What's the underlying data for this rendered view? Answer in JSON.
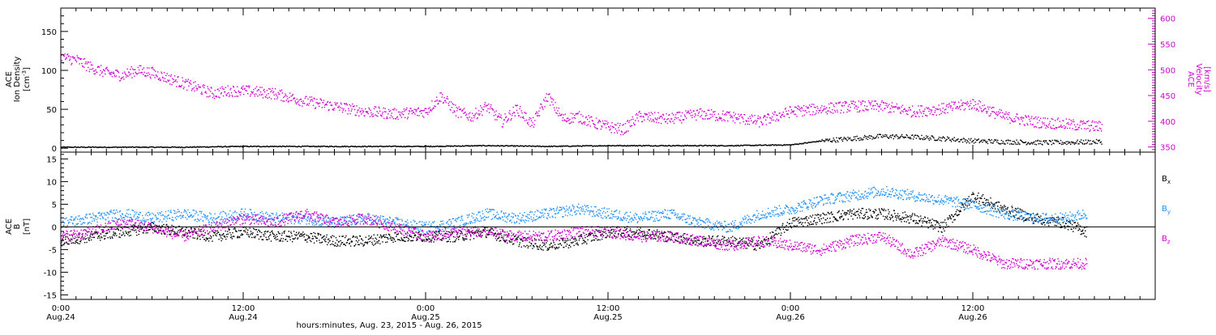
{
  "colors": {
    "black": "#000000",
    "magenta": "#d000d0",
    "blue": "#1e90ff"
  },
  "x_axis": {
    "tick_labels": [
      {
        "time": "0:00",
        "date": "Aug.24"
      },
      {
        "time": "12:00",
        "date": "Aug.24"
      },
      {
        "time": "0:00",
        "date": "Aug.25"
      },
      {
        "time": "12:00",
        "date": "Aug.25"
      },
      {
        "time": "0:00",
        "date": "Aug.26"
      },
      {
        "time": "12:00",
        "date": "Aug.26"
      }
    ],
    "tick_hours": [
      0,
      12,
      24,
      36,
      48,
      60
    ],
    "range_hours": [
      0,
      72
    ],
    "label": "hours:minutes, Aug. 23, 2015 - Aug. 26, 2015"
  },
  "chart_data": [
    {
      "type": "scatter",
      "panel": "top",
      "x_units": "hours since Aug.24 0:00",
      "left_axis": {
        "label_lines": [
          "ACE",
          "Ion Density"
        ],
        "unit_prefix": "[cm",
        "unit_sup": "-3",
        "unit_suffix": "]",
        "ylim": [
          -5,
          180
        ],
        "ticks": [
          0,
          50,
          100,
          150
        ],
        "color": "#000000"
      },
      "right_axis": {
        "label_lines": [
          "ACE",
          "Velocity",
          "[km/s]"
        ],
        "ylim": [
          340,
          620
        ],
        "ticks": [
          350,
          400,
          450,
          500,
          550,
          600
        ],
        "color": "#d000d0"
      },
      "series": [
        {
          "axis": "left",
          "color": "#000000",
          "x": [
            0,
            4,
            8,
            12,
            16,
            20,
            24,
            28,
            32,
            36,
            40,
            44,
            48,
            50,
            52,
            54,
            56,
            58,
            60,
            62,
            64,
            66,
            68.5
          ],
          "y": [
            2,
            2,
            2,
            3,
            3,
            3,
            3,
            4,
            3,
            4,
            4,
            4,
            5,
            10,
            13,
            16,
            15,
            13,
            10,
            9,
            8,
            8,
            9
          ]
        },
        {
          "axis": "right",
          "color": "#d000d0",
          "x": [
            0,
            1,
            2,
            3,
            4,
            5,
            6,
            7,
            8,
            9,
            10,
            11,
            12,
            14,
            16,
            18,
            20,
            22,
            24,
            25,
            26,
            27,
            28,
            29,
            30,
            31,
            32,
            33,
            34,
            35,
            36,
            37,
            38,
            40,
            42,
            44,
            46,
            48,
            50,
            52,
            54,
            56,
            58,
            60,
            62,
            64,
            66,
            68.5
          ],
          "y": [
            525,
            520,
            505,
            495,
            490,
            500,
            495,
            485,
            475,
            465,
            455,
            460,
            460,
            455,
            440,
            430,
            420,
            415,
            420,
            450,
            420,
            410,
            430,
            400,
            425,
            395,
            450,
            405,
            410,
            398,
            390,
            385,
            410,
            405,
            415,
            410,
            400,
            420,
            425,
            430,
            430,
            420,
            425,
            435,
            410,
            400,
            395,
            390
          ]
        }
      ]
    },
    {
      "type": "scatter",
      "panel": "bottom",
      "x_units": "hours since Aug.24 0:00",
      "y_axis": {
        "label_lines": [
          "ACE",
          "B",
          "[nT]"
        ],
        "ylim": [
          -16,
          16.5
        ],
        "ticks": [
          -15,
          -10,
          -5,
          0,
          5,
          10,
          15
        ],
        "zero_line": true
      },
      "series": [
        {
          "name_base": "B",
          "name_sub": "x",
          "color": "#000000",
          "x": [
            0,
            2,
            4,
            6,
            8,
            10,
            12,
            14,
            16,
            18,
            20,
            22,
            24,
            26,
            28,
            30,
            32,
            34,
            36,
            38,
            40,
            42,
            44,
            46,
            48,
            50,
            52,
            54,
            56,
            58,
            60,
            62,
            64,
            66,
            67.5
          ],
          "y": [
            -3,
            -2,
            -1,
            0,
            -1,
            -2,
            -1,
            -2,
            -2,
            -3,
            -3,
            -2,
            -2,
            -2,
            -1,
            -3,
            -4,
            -3,
            -1,
            -1,
            -2,
            -3,
            -3,
            -4,
            1,
            2,
            3,
            3,
            2,
            0,
            7,
            4,
            2,
            1,
            -1
          ]
        },
        {
          "name_base": "B",
          "name_sub": "y",
          "color": "#1e90ff",
          "x": [
            0,
            2,
            4,
            6,
            8,
            10,
            12,
            14,
            16,
            18,
            20,
            22,
            24,
            26,
            28,
            30,
            32,
            34,
            36,
            38,
            40,
            42,
            44,
            46,
            48,
            50,
            52,
            54,
            56,
            58,
            60,
            62,
            64,
            66,
            67.5
          ],
          "y": [
            1,
            2,
            3,
            2,
            3,
            2,
            3,
            2,
            2,
            1,
            2,
            1,
            0,
            1,
            3,
            2,
            3,
            4,
            3,
            2,
            3,
            1,
            0,
            3,
            4,
            6,
            7,
            8,
            7,
            6,
            5,
            3,
            2,
            2,
            3
          ]
        },
        {
          "name_base": "B",
          "name_sub": "z",
          "color": "#d000d0",
          "x": [
            0,
            2,
            4,
            6,
            8,
            10,
            12,
            14,
            16,
            18,
            20,
            22,
            24,
            26,
            28,
            30,
            32,
            34,
            36,
            38,
            40,
            42,
            44,
            46,
            48,
            50,
            52,
            54,
            56,
            58,
            60,
            62,
            64,
            66,
            67.5
          ],
          "y": [
            -2,
            -1,
            1,
            0,
            -2,
            0,
            2,
            1,
            3,
            1,
            2,
            0,
            -2,
            -1,
            -1,
            -2,
            -2,
            -1,
            -1,
            -2,
            -2,
            -3,
            -4,
            -3,
            -4,
            -5,
            -3,
            -2,
            -6,
            -3,
            -5,
            -8,
            -8,
            -8,
            -8
          ]
        }
      ]
    }
  ]
}
